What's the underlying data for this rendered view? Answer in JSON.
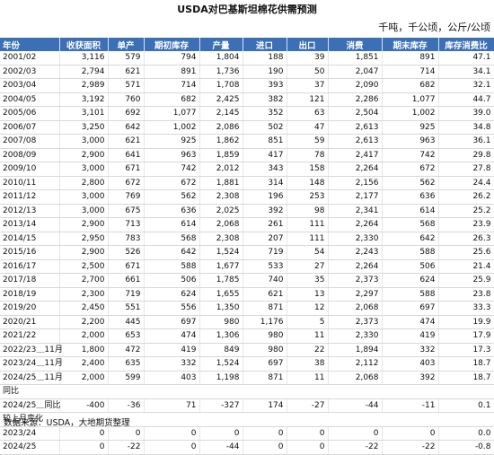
{
  "title": "USDA对巴基斯坦棉花供需预测",
  "units": "千吨，千公顷，公斤/公顷",
  "headers": [
    "年份",
    "收获面积",
    "单产",
    "期初库存",
    "产量",
    "进口",
    "出口",
    "消费",
    "期末库存",
    "库存消费比"
  ],
  "rows": [
    [
      "2001/02",
      "3,116",
      "579",
      "794",
      "1,804",
      "188",
      "39",
      "1,851",
      "891",
      "47.1"
    ],
    [
      "2002/03",
      "2,794",
      "621",
      "891",
      "1,736",
      "190",
      "50",
      "2,047",
      "714",
      "34.1"
    ],
    [
      "2003/04",
      "2,989",
      "571",
      "714",
      "1,708",
      "393",
      "37",
      "2,090",
      "682",
      "32.1"
    ],
    [
      "2004/05",
      "3,192",
      "760",
      "682",
      "2,425",
      "382",
      "121",
      "2,286",
      "1,077",
      "44.7"
    ],
    [
      "2005/06",
      "3,101",
      "692",
      "1,077",
      "2,145",
      "352",
      "63",
      "2,504",
      "1,002",
      "39.0"
    ],
    [
      "2006/07",
      "3,250",
      "642",
      "1,002",
      "2,086",
      "502",
      "47",
      "2,613",
      "925",
      "34.8"
    ],
    [
      "2007/08",
      "3,000",
      "621",
      "925",
      "1,862",
      "851",
      "59",
      "2,613",
      "963",
      "36.1"
    ],
    [
      "2008/09",
      "2,900",
      "641",
      "963",
      "1,859",
      "417",
      "78",
      "2,417",
      "742",
      "29.8"
    ],
    [
      "2009/10",
      "3,000",
      "671",
      "742",
      "2,012",
      "343",
      "158",
      "2,264",
      "672",
      "27.8"
    ],
    [
      "2010/11",
      "2,800",
      "672",
      "672",
      "1,881",
      "314",
      "148",
      "2,156",
      "562",
      "24.4"
    ],
    [
      "2011/12",
      "3,000",
      "769",
      "562",
      "2,308",
      "196",
      "253",
      "2,177",
      "636",
      "26.2"
    ],
    [
      "2012/13",
      "3,000",
      "675",
      "636",
      "2,025",
      "392",
      "98",
      "2,341",
      "614",
      "25.2"
    ],
    [
      "2013/14",
      "2,900",
      "713",
      "614",
      "2,068",
      "261",
      "111",
      "2,264",
      "568",
      "23.9"
    ],
    [
      "2014/15",
      "2,950",
      "783",
      "568",
      "2,308",
      "207",
      "111",
      "2,330",
      "642",
      "26.3"
    ],
    [
      "2015/16",
      "2,900",
      "526",
      "642",
      "1,524",
      "719",
      "54",
      "2,243",
      "588",
      "25.6"
    ],
    [
      "2016/17",
      "2,500",
      "671",
      "588",
      "1,677",
      "533",
      "27",
      "2,264",
      "506",
      "21.4"
    ],
    [
      "2017/18",
      "2,700",
      "661",
      "506",
      "1,785",
      "740",
      "35",
      "2,373",
      "624",
      "25.9"
    ],
    [
      "2018/19",
      "2,300",
      "719",
      "624",
      "1,655",
      "621",
      "13",
      "2,297",
      "588",
      "23.8"
    ],
    [
      "2019/20",
      "2,450",
      "551",
      "556",
      "1,350",
      "871",
      "12",
      "2,068",
      "697",
      "33.3"
    ],
    [
      "2020/21",
      "2,200",
      "445",
      "697",
      "980",
      "1,176",
      "5",
      "2,373",
      "474",
      "19.9"
    ],
    [
      "2021/22",
      "2,000",
      "653",
      "474",
      "1,306",
      "980",
      "11",
      "2,330",
      "419",
      "17.9"
    ],
    [
      "2022/23＿11月",
      "1,800",
      "472",
      "419",
      "849",
      "980",
      "22",
      "1,894",
      "332",
      "17.3"
    ],
    [
      "2023/24＿11月",
      "2,400",
      "635",
      "332",
      "1,524",
      "697",
      "38",
      "2,112",
      "403",
      "18.7"
    ],
    [
      "2024/25＿11月",
      "2,000",
      "599",
      "403",
      "1,198",
      "871",
      "11",
      "2,068",
      "392",
      "18.7"
    ]
  ],
  "yoy": {
    "label": "同比",
    "rows": [
      [
        "2024/25＿同比",
        "-400",
        "-36",
        "71",
        "-327",
        "174",
        "-27",
        "-44",
        "-11",
        "0.1"
      ]
    ]
  },
  "mom": {
    "label": "较上月变化",
    "rows": [
      [
        "2023/24",
        "0",
        "0",
        "0",
        "0",
        "0",
        "0",
        "0",
        "0",
        "0.0"
      ],
      [
        "2024/25",
        "0",
        "-22",
        "0",
        "-44",
        "0",
        "0",
        "-22",
        "-22",
        "-0.8"
      ]
    ]
  },
  "source": "数据来源：USDA，大地期货整理"
}
